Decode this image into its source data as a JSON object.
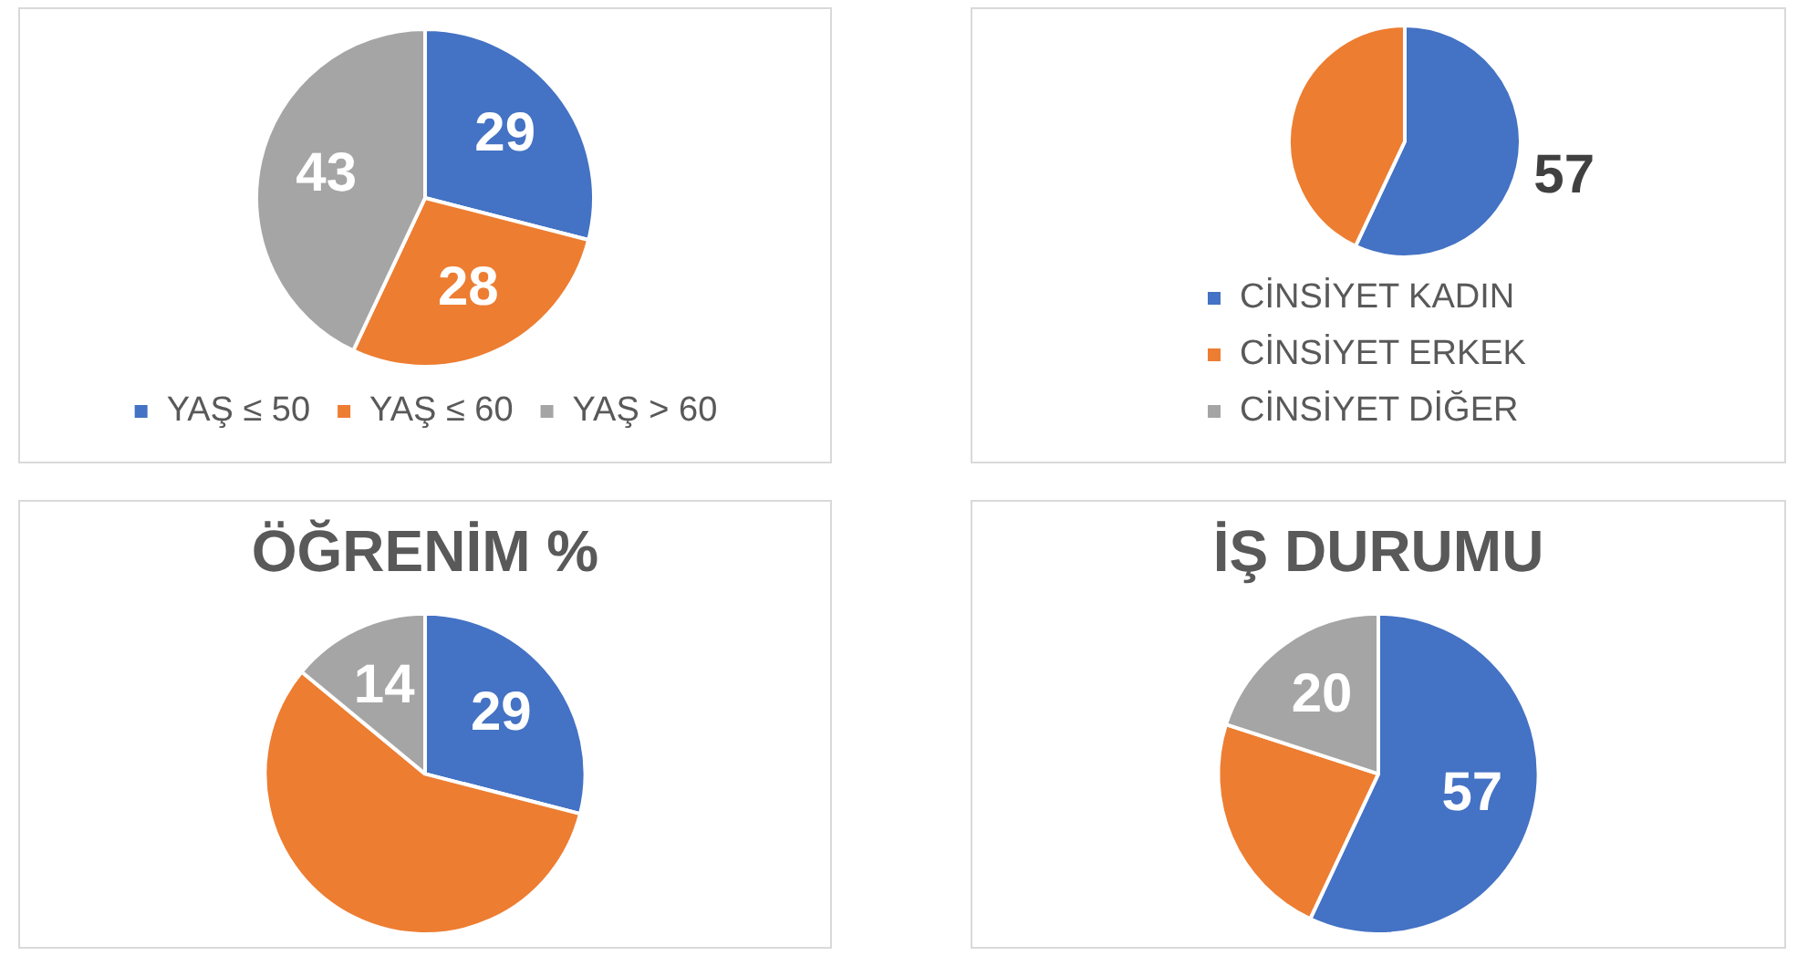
{
  "chart_data": [
    {
      "type": "pie",
      "categories": [
        "YAŞ ≤ 50",
        "YAŞ ≤ 60",
        "YAŞ > 60"
      ],
      "values": [
        29,
        28,
        43
      ],
      "colors": [
        "#4472c4",
        "#ed7d31",
        "#a5a5a5"
      ],
      "data_labels": true,
      "legend": "bottom"
    },
    {
      "type": "pie",
      "categories": [
        "CİNSİYET KADIN",
        "CİNSİYET ERKEK",
        "CİNSİYET DİĞER"
      ],
      "values": [
        57,
        43,
        0
      ],
      "colors": [
        "#4472c4",
        "#ed7d31",
        "#a5a5a5"
      ],
      "value_labels": [
        "57",
        null,
        null
      ],
      "legend": "bottom"
    },
    {
      "type": "pie",
      "title": "ÖĞRENİM %",
      "categories": [
        null,
        null,
        null
      ],
      "values": [
        29,
        57,
        14
      ],
      "colors": [
        "#4472c4",
        "#ed7d31",
        "#a5a5a5"
      ],
      "value_labels": [
        "29",
        null,
        "14"
      ]
    },
    {
      "type": "pie",
      "title": "İŞ DURUMU",
      "categories": [
        null,
        null,
        null
      ],
      "values": [
        57,
        23,
        20
      ],
      "colors": [
        "#4472c4",
        "#ed7d31",
        "#a5a5a5"
      ],
      "value_labels": [
        "57",
        null,
        "20"
      ]
    }
  ]
}
